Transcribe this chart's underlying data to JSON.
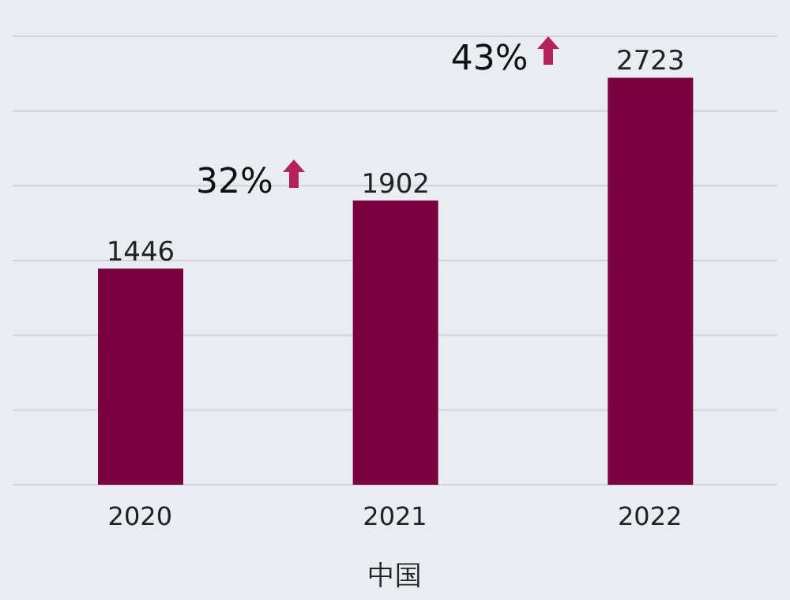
{
  "chart_data": {
    "type": "bar",
    "xlabel": "中国",
    "categories": [
      "2020",
      "2021",
      "2022"
    ],
    "values": [
      1446,
      1902,
      2723
    ],
    "color": "#7b0041",
    "data_labels": true,
    "ylim": [
      0,
      3000
    ],
    "yticks": [
      {
        "value": 0,
        "label": null
      },
      {
        "value": 500,
        "label": null
      },
      {
        "value": 1000,
        "label": null
      },
      {
        "value": 1500,
        "label": null
      },
      {
        "value": 2000,
        "label": null
      },
      {
        "value": 2500,
        "label": null
      },
      {
        "value": 3000,
        "label": null
      }
    ],
    "grid": "y",
    "tick_labels": "x",
    "annotations": [
      "32%",
      "43%"
    ]
  }
}
